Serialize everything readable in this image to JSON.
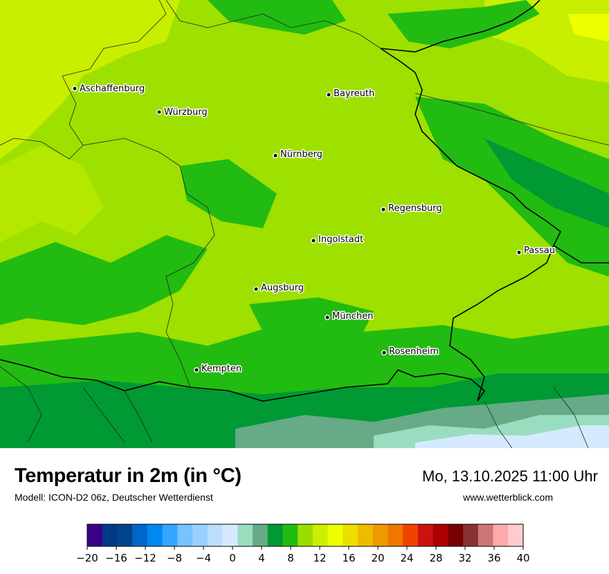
{
  "map": {
    "cities": [
      {
        "name": "Aschaffenburg"
      },
      {
        "name": "Würzburg"
      },
      {
        "name": "Bayreuth"
      },
      {
        "name": "Nürnberg"
      },
      {
        "name": "Regensburg"
      },
      {
        "name": "Ingolstadt"
      },
      {
        "name": "Passau"
      },
      {
        "name": "Augsburg"
      },
      {
        "name": "München"
      },
      {
        "name": "Rosenheim"
      },
      {
        "name": "Kempten"
      }
    ]
  },
  "footer": {
    "title": "Temperatur in 2m (in °C)",
    "subtitle": "Modell: ICON-D2 06z, Deutscher Wetterdienst",
    "datetime": "Mo, 13.10.2025 11:00 Uhr",
    "website": "www.wetterblick.com"
  },
  "legend": {
    "unit": "°C",
    "colors": [
      "#3a0088",
      "#003a88",
      "#00448c",
      "#0066cc",
      "#0088ee",
      "#33a6ff",
      "#77c2ff",
      "#99d0ff",
      "#bbdeff",
      "#d6eaff",
      "#99ddc0",
      "#66aa88",
      "#009933",
      "#22bb11",
      "#99dd00",
      "#ccee00",
      "#eeff00",
      "#eedd00",
      "#eebb00",
      "#ee9900",
      "#ee7700",
      "#ee4400",
      "#cc1111",
      "#aa0000",
      "#770000",
      "#883333",
      "#cc7777",
      "#ffaaaa",
      "#ffcccc"
    ],
    "tick_labels": [
      "−20",
      "−16",
      "−12",
      "−8",
      "−4",
      "0",
      "4",
      "8",
      "12",
      "16",
      "20",
      "24",
      "28",
      "32",
      "36",
      "40"
    ]
  }
}
